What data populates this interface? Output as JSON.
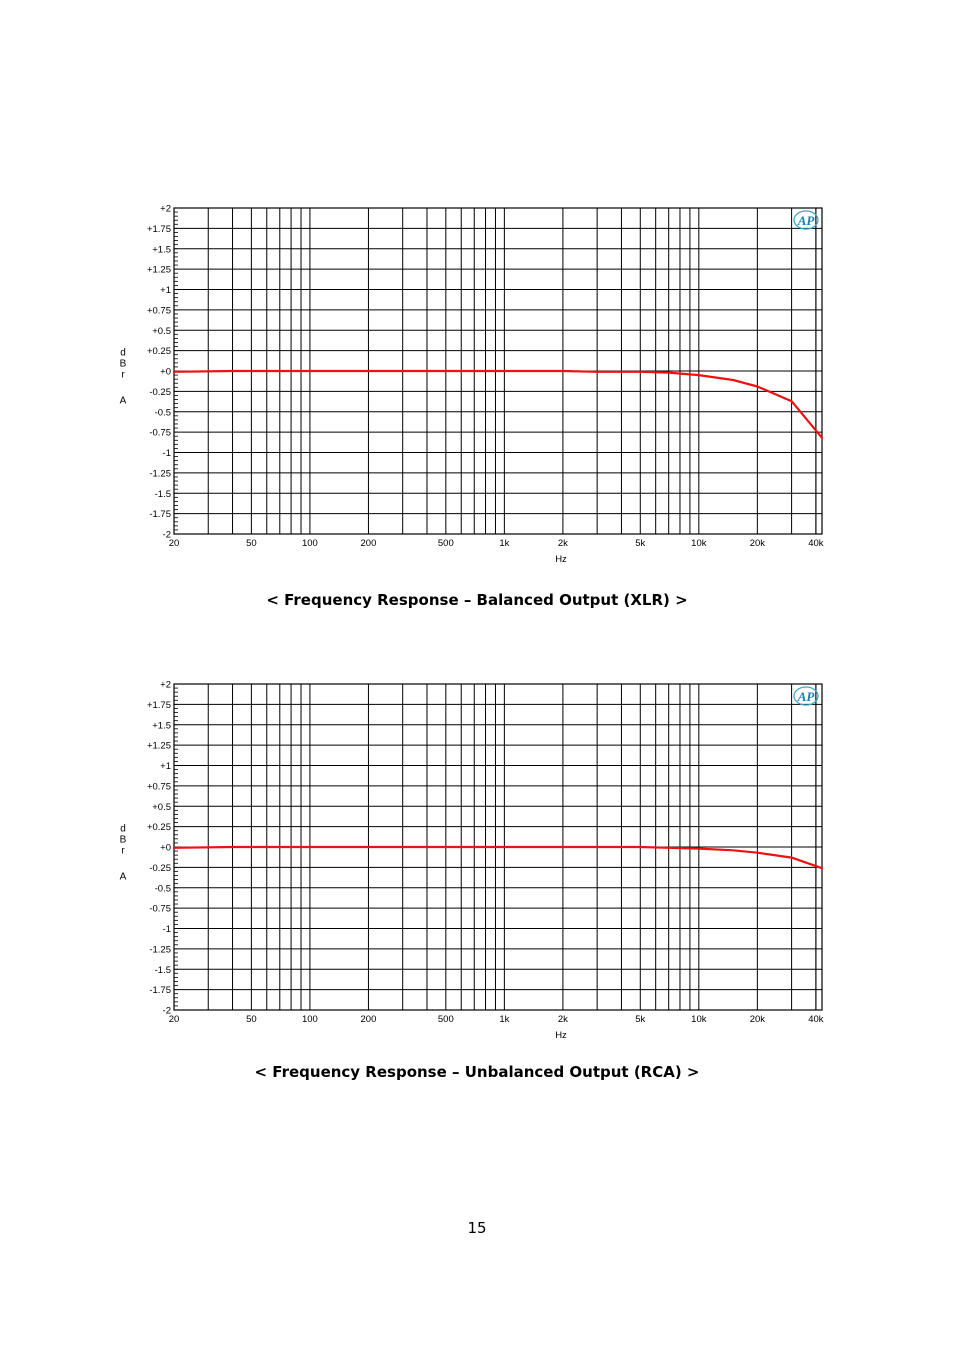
{
  "chart_data": [
    {
      "type": "line",
      "xlabel": "Hz",
      "ylabel": "dBr A",
      "xscale": "log",
      "xlim": [
        20,
        43000
      ],
      "ylim": [
        -2,
        2
      ],
      "grid": true,
      "logo": "AP",
      "x_ticks": [
        20,
        50,
        100,
        200,
        500,
        1000,
        2000,
        5000,
        10000,
        20000,
        40000
      ],
      "x_tick_labels": [
        "20",
        "50",
        "100",
        "200",
        "500",
        "1k",
        "2k",
        "5k",
        "10k",
        "20k",
        "40k"
      ],
      "y_ticks": [
        2,
        1.75,
        1.5,
        1.25,
        1,
        0.75,
        0.5,
        0.25,
        0,
        -0.25,
        -0.5,
        -0.75,
        -1,
        -1.25,
        -1.5,
        -1.75,
        -2
      ],
      "y_tick_labels": [
        "+2",
        "+1.75",
        "+1.5",
        "+1.25",
        "+1",
        "+0.75",
        "+0.5",
        "+0.25",
        "+0",
        "-0.25",
        "-0.5",
        "-0.75",
        "-1",
        "-1.25",
        "-1.5",
        "-1.75",
        "-2"
      ],
      "series": [
        {
          "color": "#ee1111",
          "x": [
            20,
            40,
            100,
            500,
            2000,
            3000,
            5000,
            7000,
            10000,
            15000,
            20000,
            30000,
            43000
          ],
          "y": [
            -0.01,
            0.0,
            0.0,
            0.0,
            0.0,
            -0.01,
            -0.01,
            -0.02,
            -0.05,
            -0.11,
            -0.19,
            -0.37,
            -0.82
          ]
        }
      ],
      "caption": "< Frequency Response – Balanced Output (XLR) >"
    },
    {
      "type": "line",
      "xlabel": "Hz",
      "ylabel": "dBr A",
      "xscale": "log",
      "xlim": [
        20,
        43000
      ],
      "ylim": [
        -2,
        2
      ],
      "grid": true,
      "logo": "AP",
      "x_ticks": [
        20,
        50,
        100,
        200,
        500,
        1000,
        2000,
        5000,
        10000,
        20000,
        40000
      ],
      "x_tick_labels": [
        "20",
        "50",
        "100",
        "200",
        "500",
        "1k",
        "2k",
        "5k",
        "10k",
        "20k",
        "40k"
      ],
      "y_ticks": [
        2,
        1.75,
        1.5,
        1.25,
        1,
        0.75,
        0.5,
        0.25,
        0,
        -0.25,
        -0.5,
        -0.75,
        -1,
        -1.25,
        -1.5,
        -1.75,
        -2
      ],
      "y_tick_labels": [
        "+2",
        "+1.75",
        "+1.5",
        "+1.25",
        "+1",
        "+0.75",
        "+0.5",
        "+0.25",
        "+0",
        "-0.25",
        "-0.5",
        "-0.75",
        "-1",
        "-1.25",
        "-1.5",
        "-1.75",
        "-2"
      ],
      "series": [
        {
          "color": "#ee1111",
          "x": [
            20,
            40,
            100,
            500,
            2000,
            5000,
            7000,
            10000,
            15000,
            20000,
            30000,
            43000
          ],
          "y": [
            -0.01,
            0.0,
            0.0,
            0.0,
            0.0,
            0.0,
            -0.01,
            -0.02,
            -0.04,
            -0.07,
            -0.13,
            -0.26
          ]
        }
      ],
      "caption": "< Frequency Response – Unbalanced Output (RCA) >"
    }
  ],
  "page_number": "15"
}
